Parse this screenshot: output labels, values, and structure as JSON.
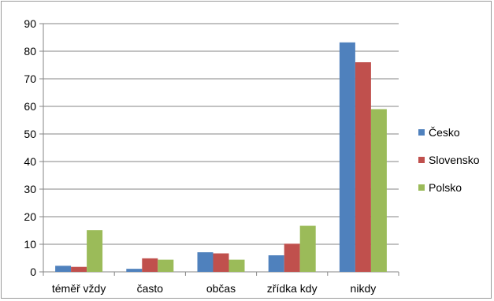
{
  "chart_data": {
    "type": "bar",
    "categories": [
      "téměř vždy",
      "často",
      "občas",
      "zřídka kdy",
      "nikdy"
    ],
    "series": [
      {
        "name": "Česko",
        "color": "#4f81bd",
        "values": [
          2.2,
          1.1,
          7.1,
          6.0,
          83.2
        ]
      },
      {
        "name": "Slovensko",
        "color": "#c0504d",
        "values": [
          1.8,
          4.9,
          6.7,
          10.2,
          76.0
        ]
      },
      {
        "name": "Polsko",
        "color": "#9bbb59",
        "values": [
          15.1,
          4.4,
          4.4,
          16.7,
          59.0
        ]
      }
    ],
    "ylim": [
      0,
      90
    ],
    "yticks": [
      0,
      10,
      20,
      30,
      40,
      50,
      60,
      70,
      80,
      90
    ],
    "grid": true,
    "legend_position": "right"
  }
}
